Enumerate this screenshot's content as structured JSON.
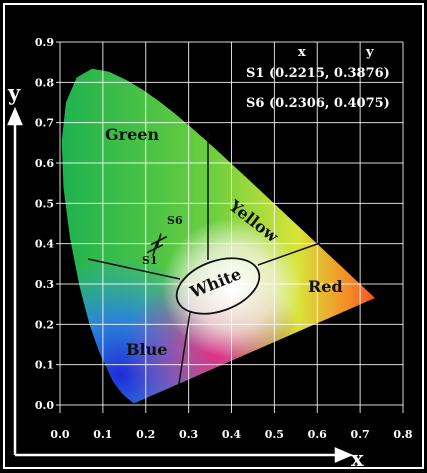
{
  "chart_data": {
    "type": "scatter",
    "xlabel": "x",
    "ylabel": "y",
    "xlim": [
      0.0,
      0.8
    ],
    "ylim": [
      0.0,
      0.9
    ],
    "x_ticks": [
      "0.0",
      "0.1",
      "0.2",
      "0.3",
      "0.4",
      "0.5",
      "0.6",
      "0.7",
      "0.8"
    ],
    "y_ticks": [
      "0.0",
      "0.1",
      "0.2",
      "0.3",
      "0.4",
      "0.5",
      "0.6",
      "0.7",
      "0.8",
      "0.9"
    ],
    "grid": true,
    "background": "CIE 1931 chromaticity diagram",
    "regions": [
      "Green",
      "Yellow",
      "White",
      "Red",
      "Blue"
    ],
    "points": [
      {
        "name": "S1",
        "x": 0.2215,
        "y": 0.3876
      },
      {
        "name": "S6",
        "x": 0.2306,
        "y": 0.4075
      }
    ],
    "legend": {
      "header_x": "x",
      "header_y": "y",
      "entries": [
        "S1 (0.2215, 0.3876)",
        "S6 (0.2306, 0.4075)"
      ]
    }
  },
  "colors": {
    "background": "#000000",
    "grid": "#ffffff",
    "text": "#ffffff",
    "region_text": "#111111"
  }
}
